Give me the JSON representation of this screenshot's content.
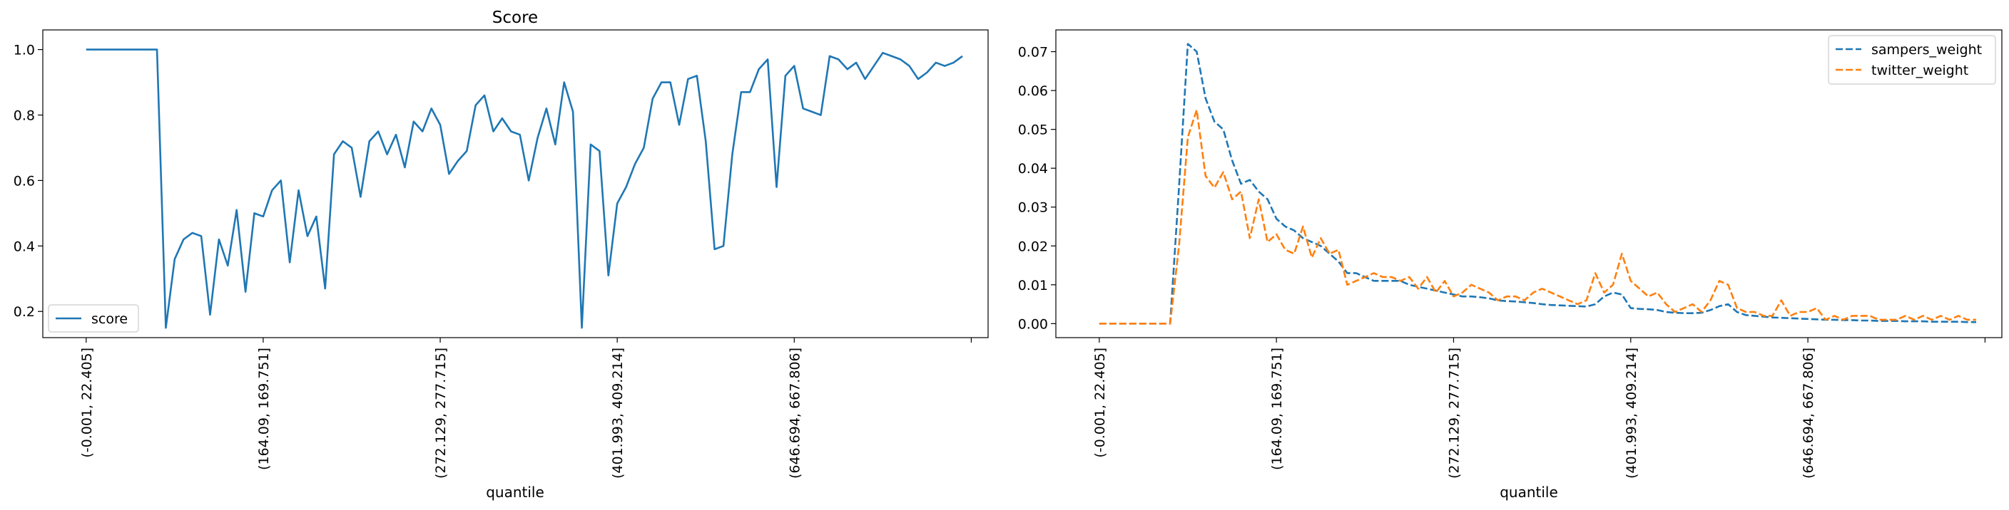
{
  "chart_data": [
    {
      "type": "line",
      "title": "Score",
      "xlabel": "quantile",
      "ylabel": "",
      "ylim": [
        0.12,
        1.06
      ],
      "yticks": [
        0.2,
        0.4,
        0.6,
        0.8,
        1.0
      ],
      "ytick_labels": [
        "0.2",
        "0.4",
        "0.6",
        "0.8",
        "1.0"
      ],
      "xlim": [
        -4.9,
        101.9
      ],
      "xticks": [
        0,
        20,
        40,
        60,
        80,
        100
      ],
      "xtick_labels": [
        "(-0.001, 22.405]",
        "(164.09, 169.751]",
        "(272.129, 277.715]",
        "(401.993, 409.214]",
        "(646.694, 667.806]",
        ""
      ],
      "legend": {
        "position": "lower-left",
        "entries": [
          "score"
        ]
      },
      "grid": false,
      "series": [
        {
          "name": "score",
          "color": "#1f77b4",
          "dash": "solid",
          "values": [
            1.0,
            1.0,
            1.0,
            1.0,
            1.0,
            1.0,
            1.0,
            1.0,
            1.0,
            0.15,
            0.36,
            0.42,
            0.44,
            0.43,
            0.19,
            0.42,
            0.34,
            0.51,
            0.26,
            0.5,
            0.49,
            0.57,
            0.6,
            0.35,
            0.57,
            0.43,
            0.49,
            0.27,
            0.68,
            0.72,
            0.7,
            0.55,
            0.72,
            0.75,
            0.68,
            0.74,
            0.64,
            0.78,
            0.75,
            0.82,
            0.77,
            0.62,
            0.66,
            0.69,
            0.83,
            0.86,
            0.75,
            0.79,
            0.75,
            0.74,
            0.6,
            0.73,
            0.82,
            0.71,
            0.9,
            0.81,
            0.15,
            0.71,
            0.69,
            0.31,
            0.53,
            0.58,
            0.65,
            0.7,
            0.85,
            0.9,
            0.9,
            0.77,
            0.91,
            0.92,
            0.72,
            0.39,
            0.4,
            0.68,
            0.87,
            0.87,
            0.94,
            0.97,
            0.58,
            0.92,
            0.95,
            0.82,
            0.81,
            0.8,
            0.98,
            0.97,
            0.94,
            0.96,
            0.91,
            0.95,
            0.99,
            0.98,
            0.97,
            0.95,
            0.91,
            0.93,
            0.96,
            0.95,
            0.96,
            0.98
          ]
        }
      ]
    },
    {
      "type": "line",
      "title": "",
      "xlabel": "quantile",
      "ylabel": "",
      "ylim": [
        -0.0036,
        0.0756
      ],
      "yticks": [
        0.0,
        0.01,
        0.02,
        0.03,
        0.04,
        0.05,
        0.06,
        0.07
      ],
      "ytick_labels": [
        "0.00",
        "0.01",
        "0.02",
        "0.03",
        "0.04",
        "0.05",
        "0.06",
        "0.07"
      ],
      "xlim": [
        -4.9,
        101.9
      ],
      "xticks": [
        0,
        20,
        40,
        60,
        80,
        100
      ],
      "xtick_labels": [
        "(-0.001, 22.405]",
        "(164.09, 169.751]",
        "(272.129, 277.715]",
        "(401.993, 409.214]",
        "(646.694, 667.806]",
        ""
      ],
      "legend": {
        "position": "upper-right",
        "entries": [
          "sampers_weight",
          "twitter_weight"
        ]
      },
      "grid": false,
      "series": [
        {
          "name": "sampers_weight",
          "color": "#1f77b4",
          "dash": "dashed",
          "values": [
            0,
            0,
            0,
            0,
            0,
            0,
            0,
            0,
            0,
            0.035,
            0.072,
            0.07,
            0.058,
            0.052,
            0.05,
            0.042,
            0.036,
            0.037,
            0.034,
            0.032,
            0.027,
            0.025,
            0.024,
            0.022,
            0.021,
            0.02,
            0.018,
            0.016,
            0.013,
            0.013,
            0.012,
            0.011,
            0.011,
            0.011,
            0.011,
            0.01,
            0.0095,
            0.009,
            0.0085,
            0.008,
            0.0075,
            0.007,
            0.007,
            0.0068,
            0.0065,
            0.006,
            0.0058,
            0.0057,
            0.0055,
            0.0053,
            0.005,
            0.0048,
            0.0047,
            0.0046,
            0.0045,
            0.0044,
            0.005,
            0.007,
            0.008,
            0.0075,
            0.004,
            0.0038,
            0.0037,
            0.0035,
            0.003,
            0.0028,
            0.0027,
            0.0027,
            0.0028,
            0.0035,
            0.0045,
            0.005,
            0.003,
            0.0022,
            0.002,
            0.0018,
            0.0016,
            0.0015,
            0.0014,
            0.0013,
            0.0012,
            0.0011,
            0.001,
            0.001,
            0.0009,
            0.0009,
            0.0008,
            0.0008,
            0.0007,
            0.0007,
            0.0007,
            0.0006,
            0.0006,
            0.0006,
            0.0005,
            0.0005,
            0.0005,
            0.0005,
            0.0004,
            0.0004
          ]
        },
        {
          "name": "twitter_weight",
          "color": "#ff7f0e",
          "dash": "dashed",
          "values": [
            0,
            0,
            0,
            0,
            0,
            0,
            0,
            0,
            0,
            0.02,
            0.048,
            0.055,
            0.038,
            0.035,
            0.039,
            0.032,
            0.034,
            0.022,
            0.032,
            0.021,
            0.023,
            0.019,
            0.018,
            0.025,
            0.017,
            0.022,
            0.018,
            0.019,
            0.01,
            0.011,
            0.012,
            0.013,
            0.012,
            0.012,
            0.011,
            0.012,
            0.009,
            0.012,
            0.008,
            0.011,
            0.007,
            0.008,
            0.01,
            0.009,
            0.008,
            0.006,
            0.007,
            0.007,
            0.006,
            0.008,
            0.009,
            0.008,
            0.007,
            0.006,
            0.005,
            0.006,
            0.013,
            0.008,
            0.01,
            0.018,
            0.011,
            0.009,
            0.007,
            0.008,
            0.005,
            0.003,
            0.004,
            0.005,
            0.003,
            0.006,
            0.011,
            0.01,
            0.004,
            0.003,
            0.003,
            0.002,
            0.002,
            0.006,
            0.002,
            0.003,
            0.003,
            0.004,
            0.001,
            0.002,
            0.001,
            0.002,
            0.002,
            0.002,
            0.001,
            0.001,
            0.001,
            0.002,
            0.001,
            0.002,
            0.001,
            0.002,
            0.001,
            0.002,
            0.001,
            0.001
          ]
        }
      ]
    }
  ]
}
